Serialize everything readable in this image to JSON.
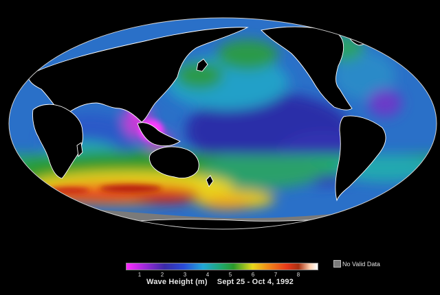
{
  "map": {
    "projection": "Mollweide",
    "variable": "Wave Height",
    "colors": {
      "background": "#000000",
      "land": "#000000",
      "coastline": "#ffffff",
      "no_data": "#7a7a7a",
      "low": "#ff2bff",
      "mid": "#22a8d8",
      "high": "#ffffff"
    }
  },
  "legend": {
    "scale_ticks": [
      "1",
      "2",
      "3",
      "4",
      "5",
      "6",
      "7",
      "8"
    ],
    "no_data_label": "No Valid Data"
  },
  "caption": {
    "variable": "Wave Height (m)",
    "dates": "Sept 25 - Oct 4, 1992"
  }
}
